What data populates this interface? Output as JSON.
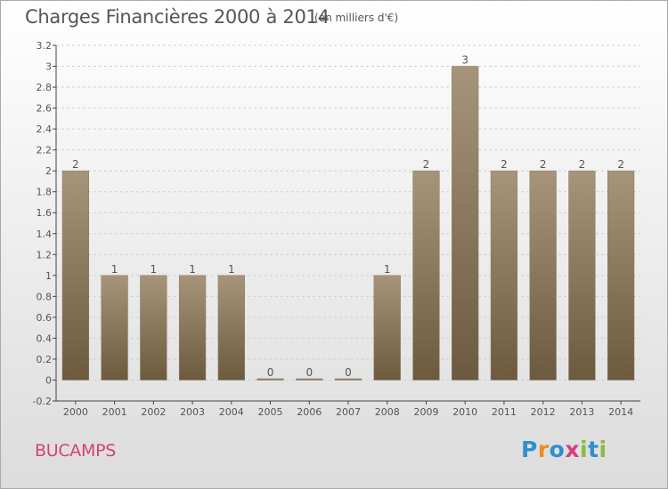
{
  "header": {
    "title": "Charges Financières 2000 à 2014",
    "unit": "(en milliers d'€)"
  },
  "footer": {
    "commune": "BUCAMPS",
    "logo_letters": [
      "P",
      "r",
      "o",
      "x",
      "i",
      "t",
      "i"
    ]
  },
  "colors": {
    "bar_light": "#a6957a",
    "bar_dark": "#6c5a3f",
    "grid": "#cfcfcf",
    "text": "#555555",
    "commune": "#d2427a"
  },
  "chart_data": {
    "type": "bar",
    "title": "Charges Financières 2000 à 2014",
    "subtitle": "(en milliers d'€)",
    "categories": [
      "2000",
      "2001",
      "2002",
      "2003",
      "2004",
      "2005",
      "2006",
      "2007",
      "2008",
      "2009",
      "2010",
      "2011",
      "2012",
      "2013",
      "2014"
    ],
    "values": [
      2,
      1,
      1,
      1,
      1,
      0,
      0,
      0,
      1,
      2,
      3,
      2,
      2,
      2,
      2
    ],
    "data_labels": [
      "2",
      "1",
      "1",
      "1",
      "1",
      "0",
      "0",
      "0",
      "1",
      "2",
      "3",
      "2",
      "2",
      "2",
      "2"
    ],
    "ylim": [
      -0.2,
      3.2
    ],
    "yticks": [
      -0.2,
      0,
      0.2,
      0.4,
      0.6,
      0.8,
      1,
      1.2,
      1.4,
      1.6,
      1.8,
      2,
      2.2,
      2.4,
      2.6,
      2.8,
      3,
      3.2
    ],
    "ytick_labels": [
      "-0.2",
      "0",
      "0.2",
      "0.4",
      "0.6",
      "0.8",
      "1",
      "1.2",
      "1.4",
      "1.6",
      "1.8",
      "2",
      "2.2",
      "2.4",
      "2.6",
      "2.8",
      "3",
      "3.2"
    ],
    "grid": true,
    "legend": "none"
  }
}
